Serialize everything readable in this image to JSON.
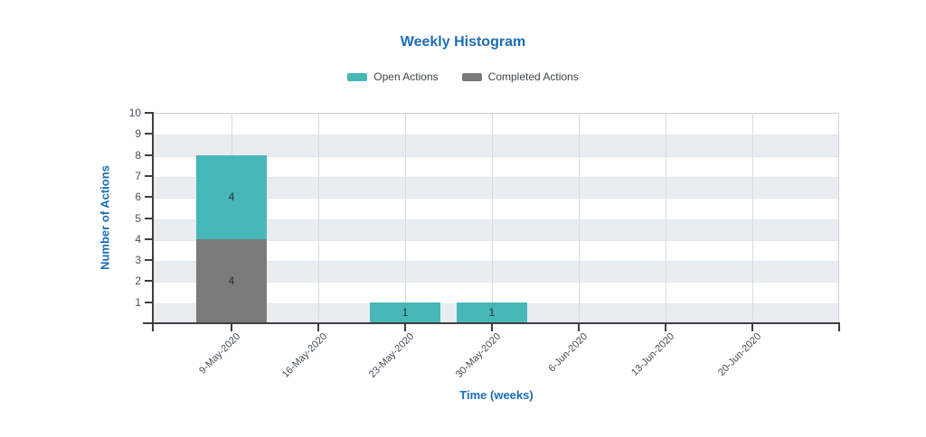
{
  "chart_data": {
    "type": "bar",
    "stacked": true,
    "title": "Weekly Histogram",
    "xlabel": "Time (weeks)",
    "ylabel": "Number of Actions",
    "categories": [
      "9-May-2020",
      "16-May-2020",
      "23-May-2020",
      "30-May-2020",
      "6-Jun-2020",
      "13-Jun-2020",
      "20-Jun-2020"
    ],
    "series": [
      {
        "name": "Open Actions",
        "color": "#47b8b8",
        "values": [
          4,
          0,
          1,
          1,
          0,
          0,
          0
        ]
      },
      {
        "name": "Completed Actions",
        "color": "#7b7b7b",
        "values": [
          4,
          0,
          0,
          0,
          0,
          0,
          0
        ]
      }
    ],
    "stack_bottom_to_top": [
      "Completed Actions",
      "Open Actions"
    ],
    "bar_value_labels": true,
    "ylim": [
      0,
      10
    ],
    "ytick_step": 1,
    "yticks_labeled": [
      1,
      2,
      3,
      4,
      5,
      6,
      7,
      8,
      9,
      10
    ],
    "legend_position": "top",
    "grid": {
      "vertical_gridlines": true,
      "alternating_horizontal_bands": true
    },
    "colors": {
      "accent_blue": "#1b6cb5",
      "band_fill": "#e9edf1",
      "band_line": "#e4e8eb",
      "vertical_gridline": "#d7dbde",
      "plot_border": "#ced3d7",
      "axis_line": "#3f3f3f",
      "tick_label": "#454e58",
      "legend_text": "#3f4448",
      "bar_value_label": "#2b2f33",
      "background": "#ffffff"
    }
  }
}
